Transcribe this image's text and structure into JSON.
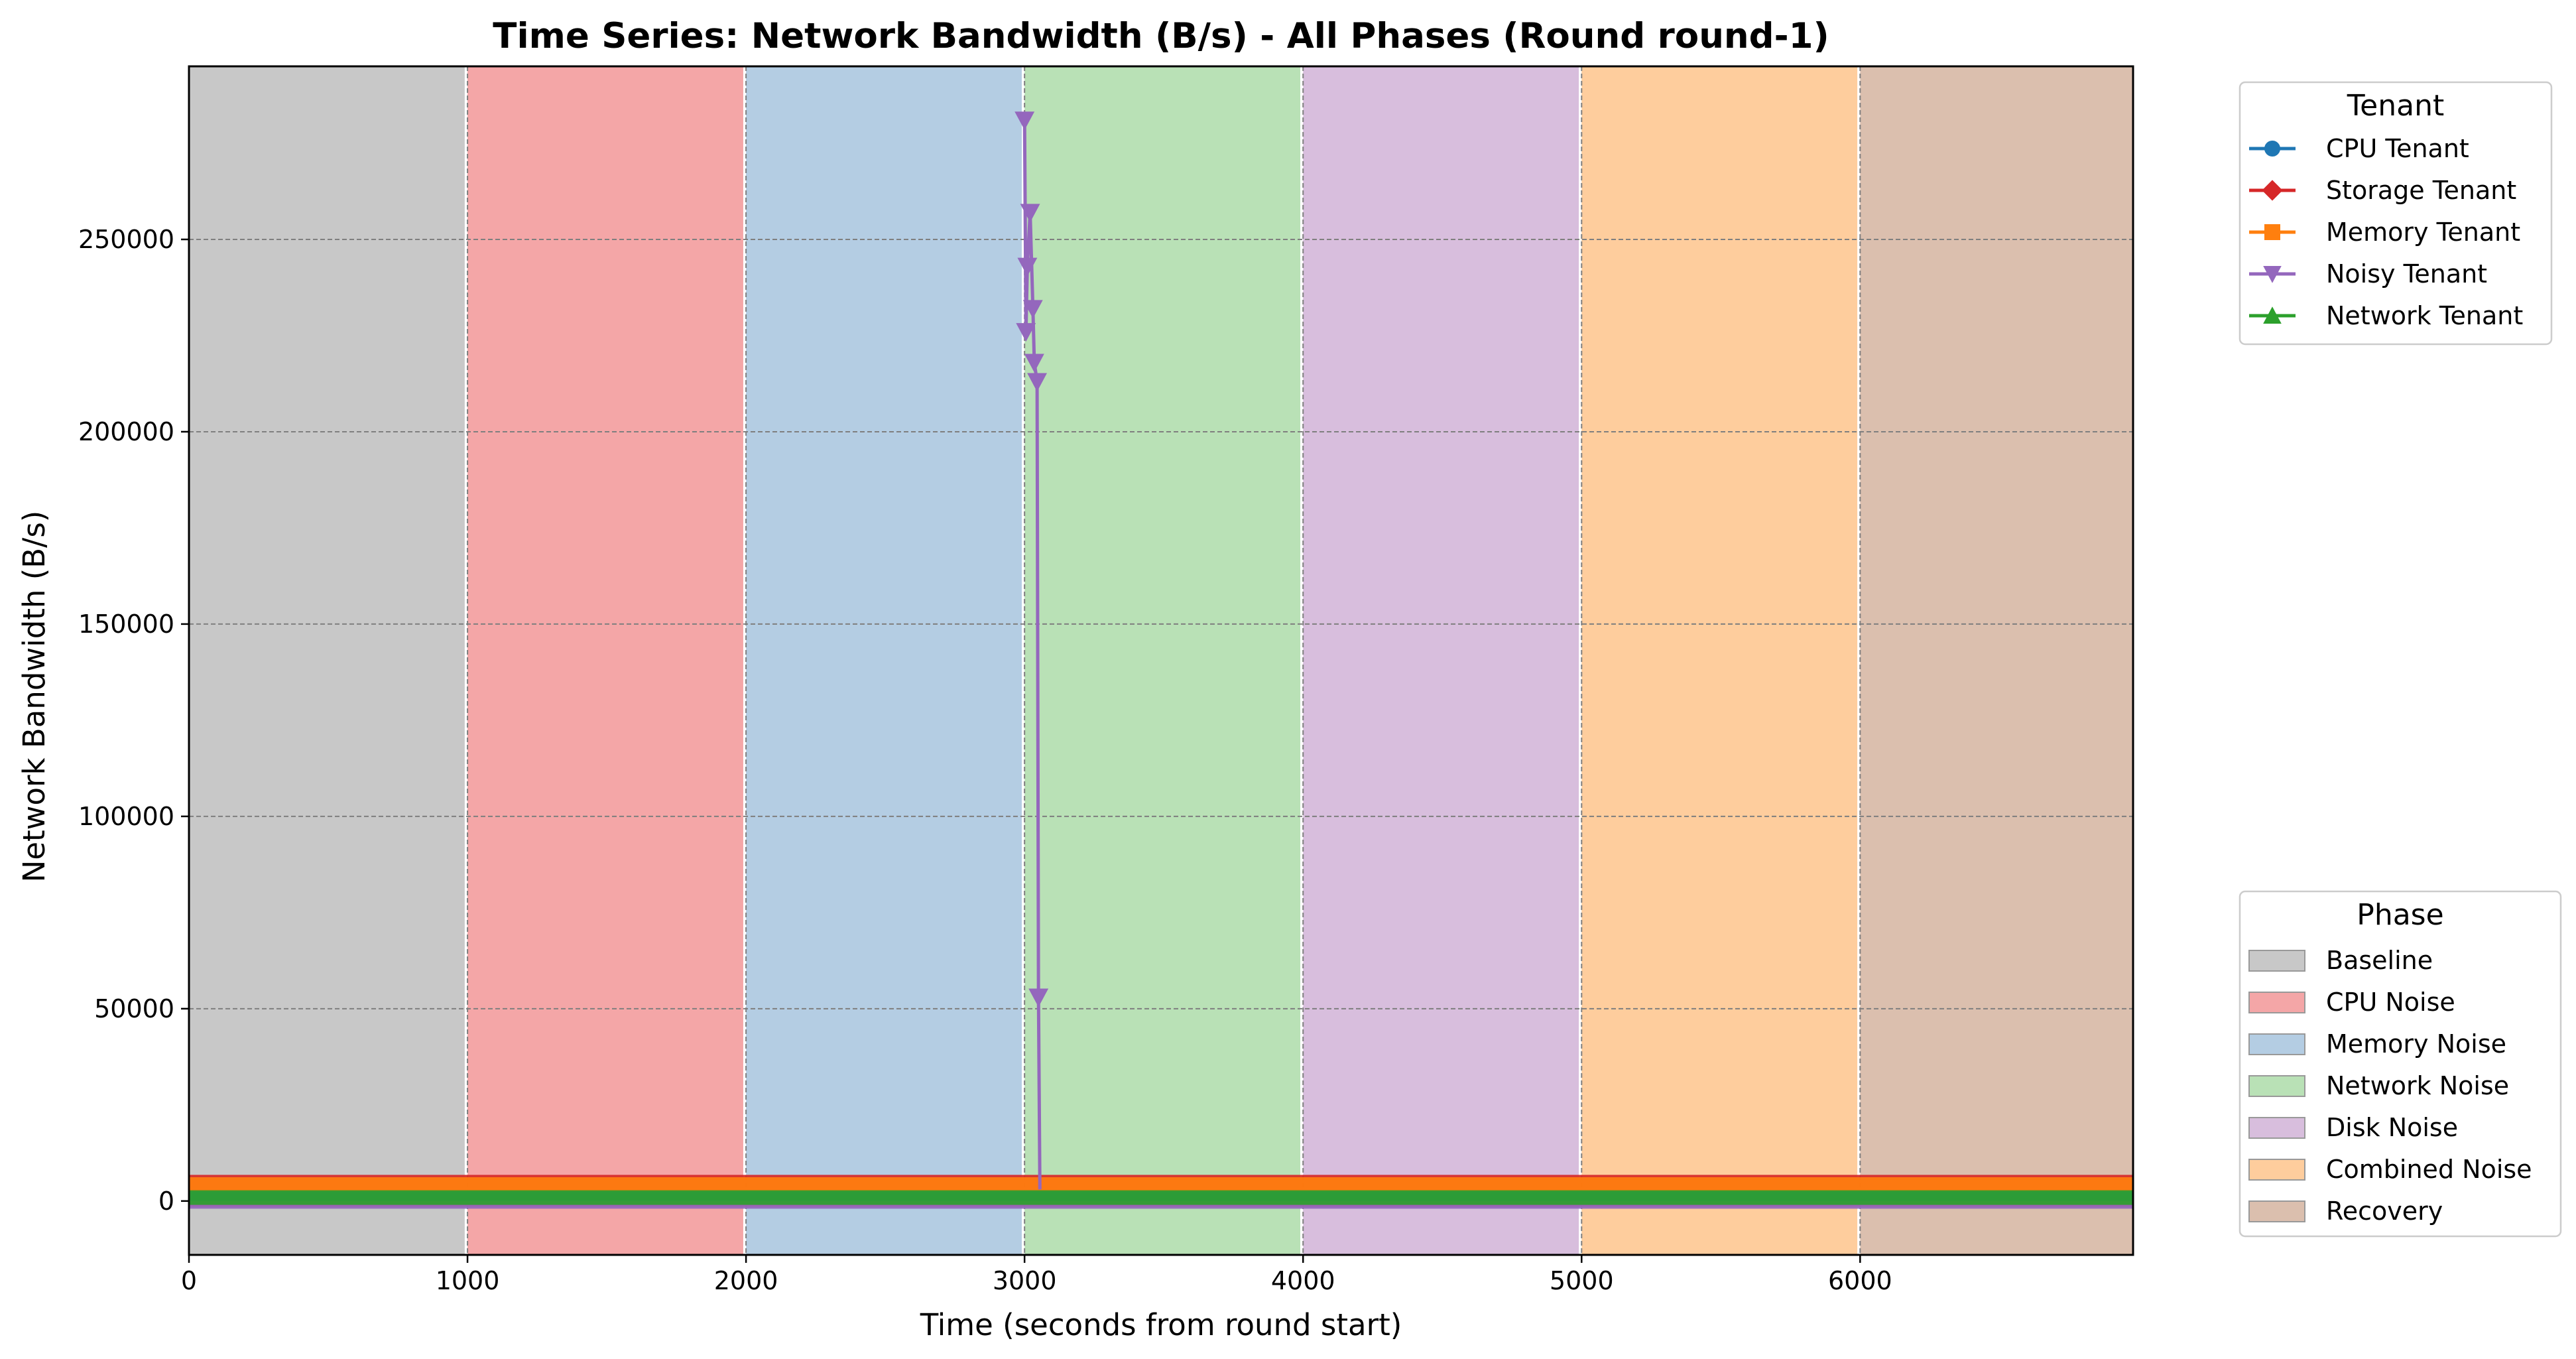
{
  "chart_data": {
    "type": "line",
    "title": "Time Series: Network Bandwidth (B/s) - All Phases (Round round-1)",
    "xlabel": "Time (seconds from round start)",
    "ylabel": "Network Bandwidth (B/s)",
    "xlim": [
      0,
      6980
    ],
    "ylim": [
      -14000,
      295000
    ],
    "xticks": [
      0,
      1000,
      2000,
      3000,
      4000,
      5000,
      6000
    ],
    "xtick_labels": [
      "0",
      "1000",
      "2000",
      "3000",
      "4000",
      "5000",
      "6000"
    ],
    "yticks": [
      0,
      50000,
      100000,
      150000,
      200000,
      250000
    ],
    "ytick_labels": [
      "0",
      "50000",
      "100000",
      "150000",
      "200000",
      "250000"
    ],
    "grid": true,
    "phases": [
      {
        "name": "Baseline",
        "start": 0,
        "end": 990,
        "color": "#c8c8c8"
      },
      {
        "name": "CPU Noise",
        "start": 1000,
        "end": 1990,
        "color": "#f4a6a7"
      },
      {
        "name": "Memory Noise",
        "start": 2000,
        "end": 2990,
        "color": "#b4cde3"
      },
      {
        "name": "Network Noise",
        "start": 3000,
        "end": 3990,
        "color": "#b9e1b6"
      },
      {
        "name": "Disk Noise",
        "start": 4000,
        "end": 4990,
        "color": "#d8bedd"
      },
      {
        "name": "Combined Noise",
        "start": 5000,
        "end": 5990,
        "color": "#fecd9d"
      },
      {
        "name": "Recovery",
        "start": 6000,
        "end": 6980,
        "color": "#dbbfae"
      }
    ],
    "series": [
      {
        "name": "CPU Tenant",
        "color": "#1f77b4",
        "marker": "circle",
        "band": [
          0,
          2500
        ]
      },
      {
        "name": "Storage Tenant",
        "color": "#d62728",
        "marker": "diamond",
        "band": [
          -1500,
          6800
        ]
      },
      {
        "name": "Memory Tenant",
        "color": "#ff7f0e",
        "marker": "square",
        "band": [
          -500,
          6200
        ]
      },
      {
        "name": "Noisy Tenant",
        "color": "#9467bd",
        "marker": "triangle-down",
        "points": [
          [
            3000,
            281000
          ],
          [
            3005,
            226000
          ],
          [
            3010,
            243000
          ],
          [
            3020,
            257000
          ],
          [
            3030,
            232000
          ],
          [
            3035,
            218000
          ],
          [
            3045,
            213000
          ],
          [
            3050,
            53000
          ],
          [
            3055,
            3000
          ]
        ],
        "band": [
          -2000,
          2500
        ]
      },
      {
        "name": "Network Tenant",
        "color": "#2ca02c",
        "marker": "triangle-up",
        "band": [
          -1000,
          2800
        ]
      }
    ],
    "legend_tenant": {
      "title": "Tenant",
      "placement": "outside top-right"
    },
    "legend_phase": {
      "title": "Phase",
      "placement": "outside bottom-right"
    }
  }
}
